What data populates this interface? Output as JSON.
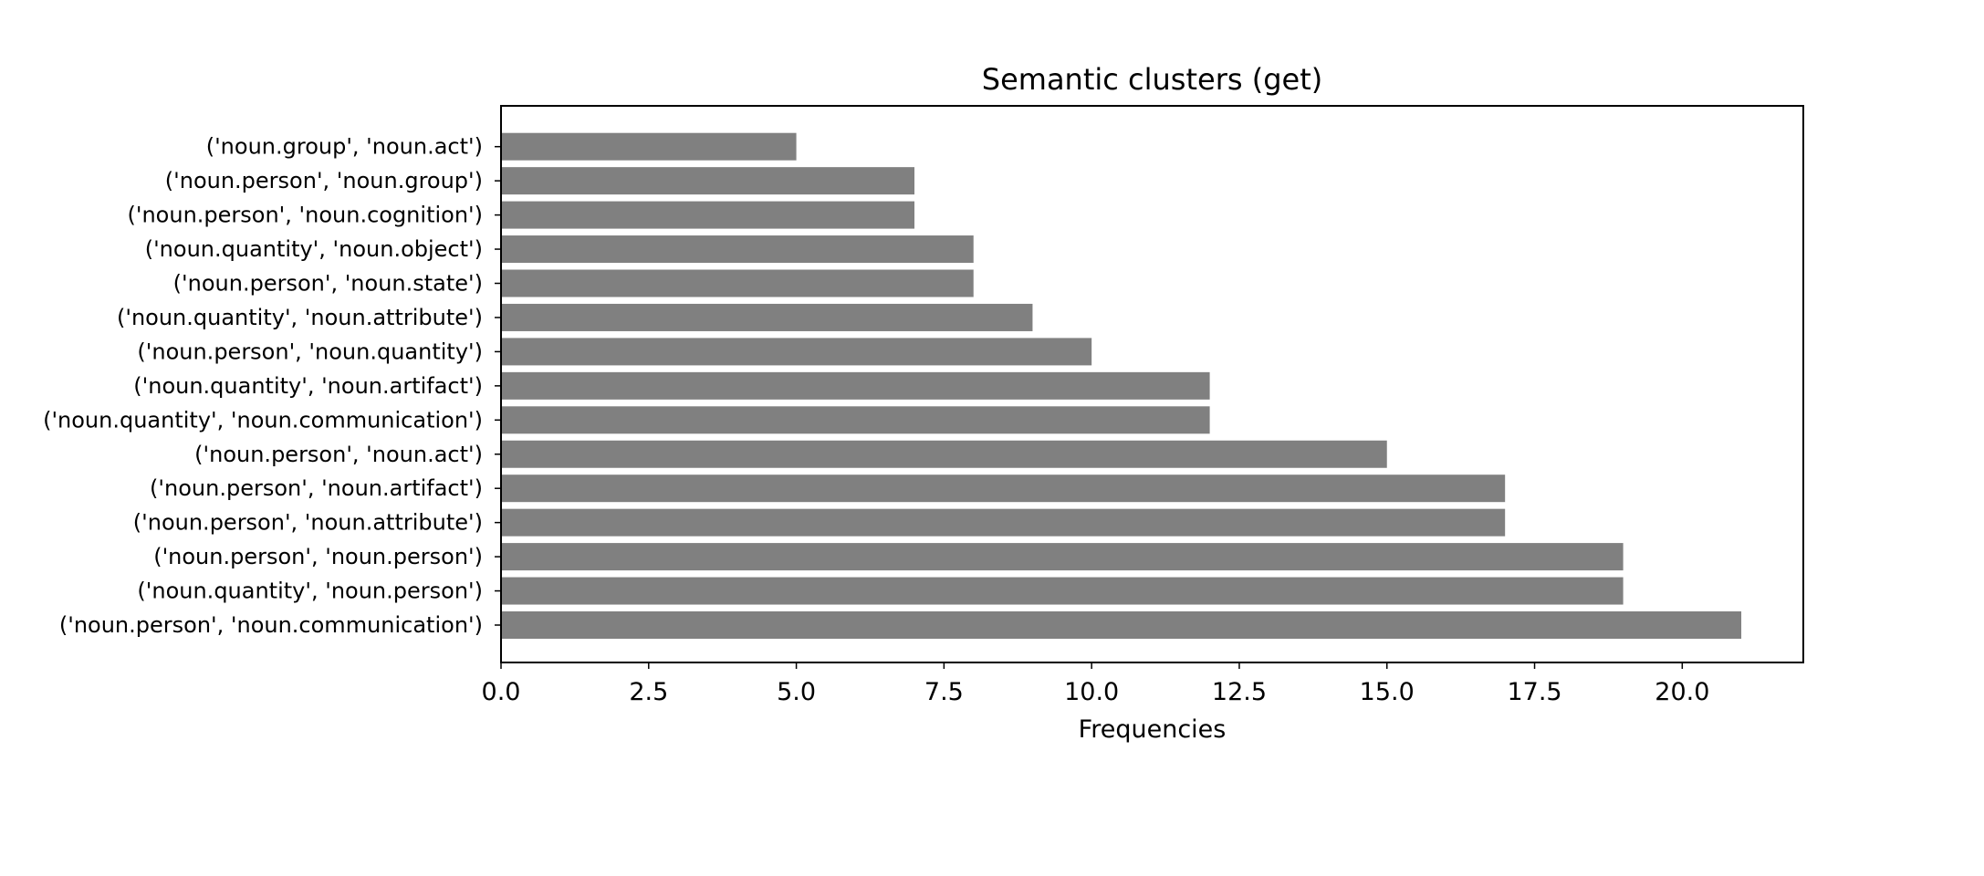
{
  "chart_data": {
    "type": "bar",
    "orientation": "horizontal",
    "title": "Semantic clusters (get)",
    "xlabel": "Frequencies",
    "ylabel": "",
    "xlim": [
      0,
      22.05
    ],
    "xticks": [
      "0.0",
      "2.5",
      "5.0",
      "7.5",
      "10.0",
      "12.5",
      "15.0",
      "17.5",
      "20.0"
    ],
    "bar_color": "#808080",
    "grid": false,
    "legend": "none",
    "categories": [
      "('noun.person', 'noun.communication')",
      "('noun.quantity', 'noun.person')",
      "('noun.person', 'noun.person')",
      "('noun.person', 'noun.attribute')",
      "('noun.person', 'noun.artifact')",
      "('noun.person', 'noun.act')",
      "('noun.quantity', 'noun.communication')",
      "('noun.quantity', 'noun.artifact')",
      "('noun.person', 'noun.quantity')",
      "('noun.quantity', 'noun.attribute')",
      "('noun.person', 'noun.state')",
      "('noun.quantity', 'noun.object')",
      "('noun.person', 'noun.cognition')",
      "('noun.person', 'noun.group')",
      "('noun.group', 'noun.act')"
    ],
    "values": [
      21,
      19,
      19,
      17,
      17,
      15,
      12,
      12,
      10,
      9,
      8,
      8,
      7,
      7,
      5
    ]
  }
}
